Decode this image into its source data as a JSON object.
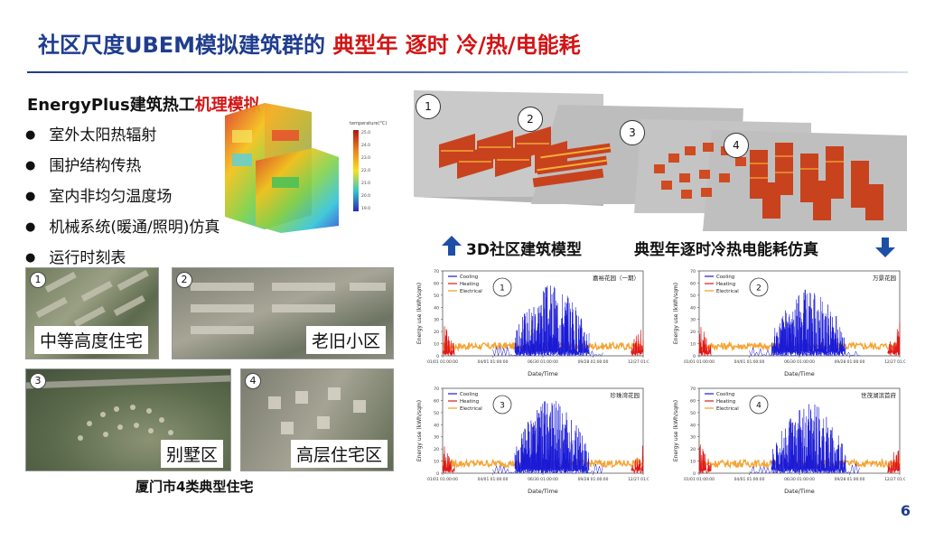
{
  "title": {
    "part1": "社区尺度UBEM模拟建筑群的 ",
    "part2": "典型年 逐时 冷/热/电能耗"
  },
  "energyplus": {
    "title_a": "EnergyPlus建筑热工",
    "title_b": "机理模拟"
  },
  "bullets": [
    "室外太阳热辐射",
    "围护结构传热",
    "室内非均匀温度场",
    "机械系统(暖通/照明)仿真",
    "运行时刻表"
  ],
  "colorbar_ticks": [
    "temperature(°C)",
    "25.0",
    "24.0",
    "23.0",
    "22.0",
    "21.0",
    "20.0",
    "19.0"
  ],
  "satellites": [
    {
      "num": "1",
      "label": "中等高度住宅"
    },
    {
      "num": "2",
      "label": "老旧小区"
    },
    {
      "num": "3",
      "label": "别墅区"
    },
    {
      "num": "4",
      "label": "高层住宅区"
    }
  ],
  "satellite_caption": "厦门市4类典型住宅",
  "model_numbers": [
    "1",
    "2",
    "3",
    "4"
  ],
  "model_label": "3D社区建筑模型",
  "sim_label": "典型年逐时冷热电能耗仿真",
  "page_number": "6",
  "colors": {
    "cooling": "#1a1ad6",
    "heating": "#e01818",
    "electrical": "#f39a1e",
    "title_blue": "#1f3d8f",
    "title_red": "#d21414"
  },
  "chart_data": [
    {
      "type": "line",
      "badge": "1",
      "name": "嘉裕花园（一期）",
      "xlabel": "Date/Time",
      "ylabel": "Energy use (kWh/sqm)",
      "ylim": [
        0,
        70
      ],
      "yticks": [
        "0",
        "10",
        "20",
        "30",
        "40",
        "50",
        "60",
        "70"
      ],
      "xticks": [
        "01/01 01:00:00",
        "04/01 01:00:00",
        "06/30 01:00:00",
        "09/28 01:00:00",
        "12/27 01:00:00"
      ],
      "legend": [
        "Cooling",
        "Heating",
        "Electrical"
      ],
      "cooling_peak": 60,
      "heating_peak": 30,
      "electrical_level": 8
    },
    {
      "type": "line",
      "badge": "2",
      "name": "万景花园",
      "xlabel": "Date/Time",
      "ylabel": "Energy use (kWh/sqm)",
      "ylim": [
        0,
        70
      ],
      "yticks": [
        "0",
        "10",
        "20",
        "30",
        "40",
        "50",
        "60",
        "70"
      ],
      "xticks": [
        "01/01 01:00:00",
        "04/01 01:00:00",
        "06/30 01:00:00",
        "09/28 01:00:00",
        "12/27 01:00:00"
      ],
      "legend": [
        "Cooling",
        "Heating",
        "Electrical"
      ],
      "cooling_peak": 55,
      "heating_peak": 28,
      "electrical_level": 8
    },
    {
      "type": "line",
      "badge": "3",
      "name": "珍珠湾花园",
      "xlabel": "Date/Time",
      "ylabel": "Energy use (kWh/sqm)",
      "ylim": [
        0,
        70
      ],
      "yticks": [
        "0",
        "10",
        "20",
        "30",
        "40",
        "50",
        "60",
        "70"
      ],
      "xticks": [
        "01/01 01:00:00",
        "04/01 01:00:00",
        "06/30 01:00:00",
        "09/28 01:00:00",
        "12/27 01:00:00"
      ],
      "legend": [
        "Cooling",
        "Heating",
        "Electrical"
      ],
      "cooling_peak": 62,
      "heating_peak": 25,
      "electrical_level": 8
    },
    {
      "type": "line",
      "badge": "4",
      "name": "世茂湖滨首府",
      "xlabel": "Date/Time",
      "ylabel": "Energy use (kWh/sqm)",
      "ylim": [
        0,
        70
      ],
      "yticks": [
        "0",
        "10",
        "20",
        "30",
        "40",
        "50",
        "60",
        "70"
      ],
      "xticks": [
        "01/01 01:00:00",
        "04/01 01:00:00",
        "06/30 01:00:00",
        "09/28 01:00:00",
        "12/27 01:00:00"
      ],
      "legend": [
        "Cooling",
        "Heating",
        "Electrical"
      ],
      "cooling_peak": 58,
      "heating_peak": 27,
      "electrical_level": 8
    }
  ]
}
